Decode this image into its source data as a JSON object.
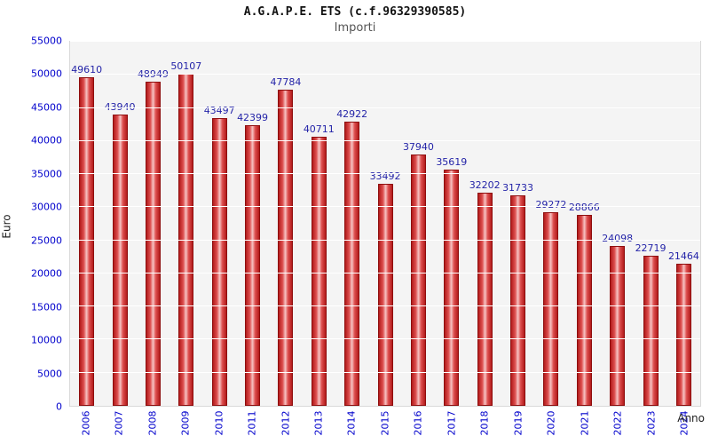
{
  "chart_data": {
    "type": "bar",
    "title": "A.G.A.P.E. ETS (c.f.96329390585)",
    "subtitle": "Importi",
    "categories": [
      "2006",
      "2007",
      "2008",
      "2009",
      "2010",
      "2011",
      "2012",
      "2013",
      "2014",
      "2015",
      "2016",
      "2017",
      "2018",
      "2019",
      "2020",
      "2021",
      "2022",
      "2023",
      "2024"
    ],
    "values": [
      49610,
      43940,
      48949,
      50107,
      43497,
      42399,
      47784,
      40711,
      42922,
      33492,
      37940,
      35619,
      32202,
      31733,
      29272,
      28866,
      24098,
      22719,
      21464
    ],
    "xlabel": "Anno",
    "ylabel": "Euro",
    "ylim": [
      0,
      55000
    ],
    "ytick_step": 5000,
    "grid": true,
    "legend": "none",
    "colors": {
      "bar_main": "#b21a1a",
      "bar_highlight": "#f6c4c4",
      "bar_border": "#8e0e0e",
      "axis_tick_label": "#0000cc",
      "value_label": "#2424a8",
      "plot_background": "#f4f4f4",
      "gridline": "#ffffff"
    }
  }
}
